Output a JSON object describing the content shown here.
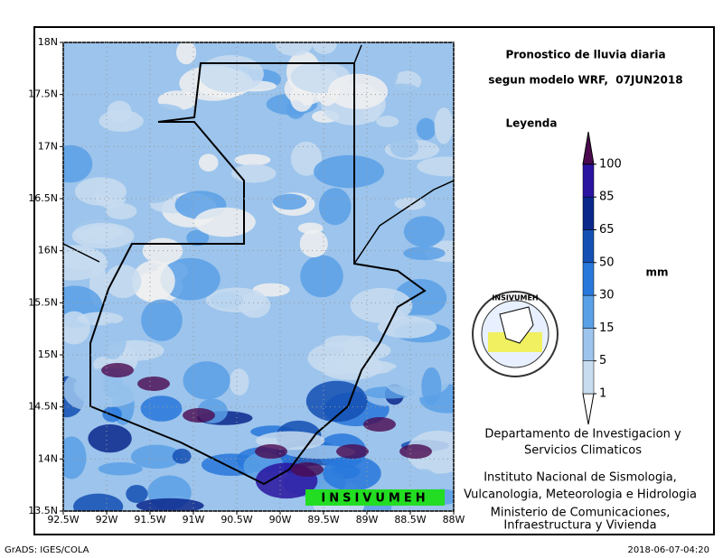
{
  "title": [
    "Pronostico de lluvia diaria",
    "segun modelo WRF,  07JUN2018"
  ],
  "map": {
    "lonlim": [
      -92.5,
      -88
    ],
    "latlim": [
      13.5,
      18
    ],
    "lon_ticks": [
      {
        "value": -92.5,
        "label": "92.5W"
      },
      {
        "value": -92,
        "label": "92W"
      },
      {
        "value": -91.5,
        "label": "91.5W"
      },
      {
        "value": -91,
        "label": "91W"
      },
      {
        "value": -90.5,
        "label": "90.5W"
      },
      {
        "value": -90,
        "label": "90W"
      },
      {
        "value": -89.5,
        "label": "89.5W"
      },
      {
        "value": -89,
        "label": "89W"
      },
      {
        "value": -88.5,
        "label": "88.5W"
      },
      {
        "value": -88,
        "label": "88W"
      }
    ],
    "lat_ticks": [
      {
        "value": 13.5,
        "label": "13.5N"
      },
      {
        "value": 14,
        "label": "14N"
      },
      {
        "value": 14.5,
        "label": "14.5N"
      },
      {
        "value": 15,
        "label": "15N"
      },
      {
        "value": 15.5,
        "label": "15.5N"
      },
      {
        "value": 16,
        "label": "16N"
      },
      {
        "value": 16.5,
        "label": "16.5N"
      },
      {
        "value": 17,
        "label": "17N"
      },
      {
        "value": 17.5,
        "label": "17.5N"
      },
      {
        "value": 18,
        "label": "18N"
      }
    ]
  },
  "legend": {
    "title": "Leyenda",
    "unit": "mm",
    "levels": [
      1,
      5,
      15,
      30,
      50,
      65,
      85,
      100
    ],
    "colors": [
      "#ffffff",
      "#c8dcf0",
      "#9cc4ec",
      "#5aa0e6",
      "#2878dc",
      "#1450b4",
      "#0a288c",
      "#2a14a0",
      "#4b0a50"
    ]
  },
  "logo": "INSIVUMEH",
  "banner": "INSIVUMEH",
  "credits": [
    "Departamento de Investigacion y",
    "Servicios Climaticos",
    "Instituto Nacional de Sismologia,",
    "Vulcanologia, Meteorologia e Hidrologia",
    "Ministerio de Comunicaciones,",
    "Infraestructura y Vivienda"
  ],
  "footer": {
    "left": "GrADS: IGES/COLA",
    "right": "2018-06-07-04:20"
  }
}
